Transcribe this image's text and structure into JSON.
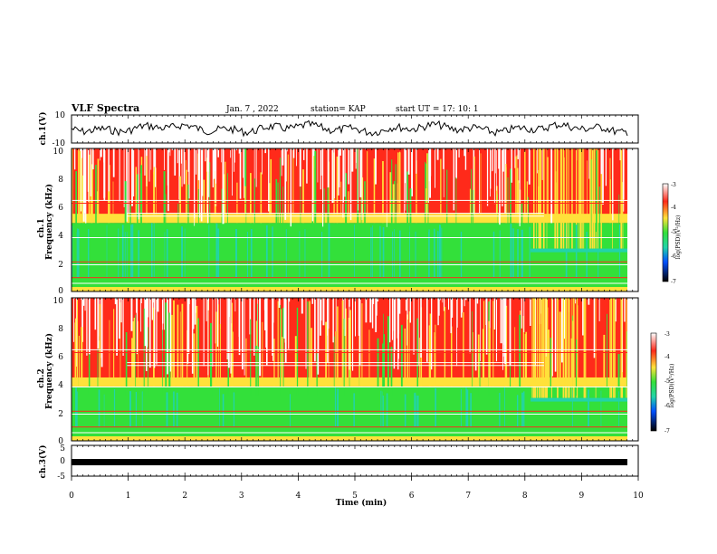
{
  "header": {
    "title": "VLF Spectra",
    "date": "Jan. 7 , 2022",
    "station": "station= KAP",
    "start": "start UT =  17: 10: 1"
  },
  "chart_data": [
    {
      "type": "line",
      "panel": "ch1-waveform",
      "ylabel": "ch.1(V)",
      "ylim": [
        -10,
        10
      ],
      "yticks": [
        "10",
        "-10"
      ],
      "xlim": [
        0,
        10
      ],
      "color": "#000000",
      "series": [
        {
          "values": [
            1,
            -2,
            0,
            2,
            -1,
            1,
            -3,
            0,
            2,
            1,
            -1,
            0,
            1
          ]
        }
      ]
    },
    {
      "type": "heatmap",
      "panel": "ch1-spectrogram",
      "ylabel": "ch.1\nFrequency (kHz)",
      "xlim": [
        0,
        10
      ],
      "ylim": [
        0,
        10
      ],
      "yticks": [
        "0",
        "2",
        "4",
        "6",
        "8",
        "10"
      ],
      "colorbar": {
        "label": "log(PSD)(V²/Hz)",
        "range": [
          -7,
          -3
        ],
        "ticks": [
          "-3",
          "-4",
          "-5",
          "-6",
          "-7"
        ]
      },
      "bands_khz": {
        "low_green": [
          1.0,
          4.8
        ],
        "red_above": 4.8
      },
      "disturbance_start_min": 8.1
    },
    {
      "type": "heatmap",
      "panel": "ch2-spectrogram",
      "ylabel": "ch.2\nFrequency (kHz)",
      "xlim": [
        0,
        10
      ],
      "ylim": [
        0,
        10
      ],
      "yticks": [
        "0",
        "2",
        "4",
        "6",
        "8",
        "10"
      ],
      "colorbar": {
        "label": "log(PSD)(V²/Hz)",
        "range": [
          -7,
          -3
        ],
        "ticks": [
          "-3",
          "-4",
          "-5",
          "-6",
          "-7"
        ]
      },
      "bands_khz": {
        "low_green": [
          0.8,
          3.8
        ],
        "red_above": 3.8
      },
      "disturbance_start_min": 8.1
    },
    {
      "type": "line",
      "panel": "ch3-waveform",
      "ylabel": "ch.3(V)",
      "ylim": [
        -5,
        5
      ],
      "yticks": [
        "5",
        "0",
        "-5"
      ],
      "xlim": [
        0,
        10
      ],
      "xlabel": "Time (min)",
      "xticks": [
        "0",
        "1",
        "2",
        "3",
        "4",
        "5",
        "6",
        "7",
        "8",
        "9",
        "10"
      ],
      "series": [
        {
          "values": [
            -1.8,
            -1.8,
            -1.8,
            -1.8,
            -1.8
          ]
        }
      ]
    }
  ],
  "colors": {
    "red": "#ff2a1a",
    "green": "#33e03a",
    "teal": "#22d4a8",
    "yellow": "#ffe13a",
    "white": "#ffffff"
  }
}
